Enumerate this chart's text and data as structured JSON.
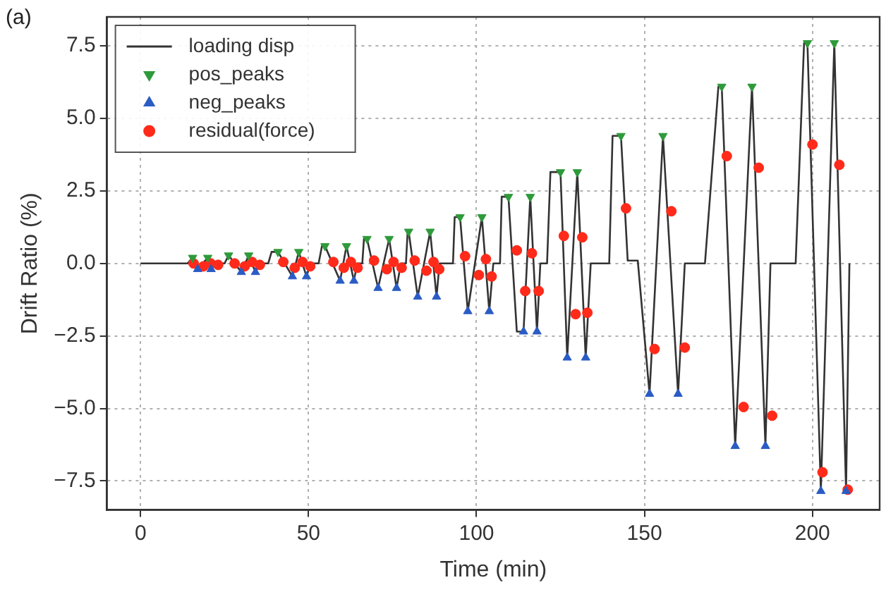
{
  "chart_data": {
    "type": "line",
    "xlabel": "Time (min)",
    "ylabel": "Drift Ratio (%)",
    "annotations": [
      "(a)"
    ],
    "xlim": [
      -10,
      220
    ],
    "xticks": [
      0,
      50,
      100,
      150,
      200
    ],
    "ylim": [
      -8.5,
      8.5
    ],
    "yticks": [
      {
        "value": -7.5,
        "label": "−7.5"
      },
      {
        "value": -5,
        "label": "−5.0"
      },
      {
        "value": -2.5,
        "label": "−2.5"
      },
      {
        "value": 0,
        "label": "0.0"
      },
      {
        "value": 2.5,
        "label": "2.5"
      },
      {
        "value": 5,
        "label": "5.0"
      },
      {
        "value": 7.5,
        "label": "7.5"
      }
    ],
    "grid": true,
    "legend": "top left",
    "series": [
      {
        "name": "loading disp",
        "color": "#333333",
        "marker": "none",
        "line_style": "solid",
        "x": [
          0,
          14,
          15.5,
          17,
          20,
          21,
          22,
          25,
          26.2,
          30,
          32.2,
          34.2,
          35.5,
          38,
          39,
          40.9,
          45.2,
          47.1,
          49.4,
          50.5,
          53,
          54,
          54.9,
          59.4,
          61.3,
          63.5,
          64.5,
          66,
          66.5,
          67.4,
          70.7,
          74,
          76.2,
          77.5,
          79,
          79.5,
          79.8,
          82.5,
          86.2,
          88.1,
          89,
          93,
          93.5,
          95.1,
          97.4,
          101.6,
          103.8,
          105,
          107,
          107.5,
          109.5,
          112,
          114,
          116,
          118,
          119,
          121,
          122,
          125,
          127,
          130,
          132.5,
          134,
          139.5,
          140.5,
          143,
          145,
          148,
          151.5,
          155.5,
          160,
          162,
          168,
          172,
          173,
          177,
          182,
          186,
          187.5,
          195,
          197.5,
          198.5,
          202.5,
          206.5,
          210,
          211
        ],
        "values": [
          0,
          0,
          0.2,
          -0.2,
          0.2,
          -0.2,
          0,
          0,
          0.28,
          -0.3,
          0.28,
          -0.3,
          0,
          0,
          0.4,
          0.4,
          -0.45,
          0.4,
          -0.45,
          0,
          0,
          0.6,
          0.6,
          -0.6,
          0.6,
          -0.6,
          0,
          0,
          0.85,
          0.85,
          -0.85,
          0.85,
          -0.85,
          0,
          0,
          1.1,
          1.1,
          -1.15,
          1.1,
          -1.15,
          0,
          0,
          1.6,
          1.6,
          -1.65,
          1.6,
          -1.65,
          0,
          0,
          2.3,
          2.3,
          -2.35,
          -2.35,
          2.3,
          -2.35,
          0,
          0,
          3.15,
          3.15,
          -3.25,
          3.15,
          -3.25,
          0,
          0,
          4.4,
          4.4,
          0.1,
          0.1,
          -4.5,
          4.4,
          -4.5,
          0,
          0,
          6.1,
          6.1,
          -6.3,
          6.1,
          -6.3,
          0,
          0,
          7.6,
          7.6,
          -7.85,
          7.6,
          -7.85,
          0
        ]
      },
      {
        "name": "pos_peaks",
        "type": "scatter",
        "color": "#2e9a3a",
        "marker": "triangle_down",
        "x": [
          15.5,
          20,
          26.2,
          32.2,
          40.9,
          47.1,
          54.9,
          61.3,
          67.4,
          74,
          79.8,
          86.2,
          95.1,
          101.6,
          109.5,
          116,
          125,
          130,
          143,
          155.5,
          173,
          182,
          198.5,
          206.5
        ],
        "values": [
          0.2,
          0.2,
          0.28,
          0.28,
          0.4,
          0.4,
          0.6,
          0.6,
          0.85,
          0.85,
          1.1,
          1.1,
          1.6,
          1.6,
          2.3,
          2.3,
          3.15,
          3.15,
          4.4,
          4.4,
          6.1,
          6.1,
          7.6,
          7.6
        ]
      },
      {
        "name": "neg_peaks",
        "type": "scatter",
        "color": "#2a5cc4",
        "marker": "triangle",
        "x": [
          17,
          21,
          30,
          34.2,
          45.2,
          49.4,
          59.4,
          63.5,
          70.7,
          76.2,
          82.5,
          88.1,
          97.4,
          103.8,
          114,
          118,
          127,
          132.5,
          151.5,
          160,
          177,
          186,
          202.5,
          210
        ],
        "values": [
          -0.2,
          -0.2,
          -0.3,
          -0.3,
          -0.45,
          -0.45,
          -0.6,
          -0.6,
          -0.85,
          -0.85,
          -1.15,
          -1.15,
          -1.65,
          -1.65,
          -2.35,
          -2.35,
          -3.25,
          -3.25,
          -4.5,
          -4.5,
          -6.3,
          -6.3,
          -7.85,
          -7.85
        ]
      },
      {
        "name": "residual(force)",
        "type": "scatter",
        "color": "#ff2a1a",
        "marker": "circle",
        "x": [
          15.8,
          18.7,
          20.9,
          23.1,
          28,
          31,
          33.2,
          35.5,
          42.5,
          45.9,
          48.2,
          50.5,
          57.4,
          60.5,
          62.6,
          64.6,
          69.5,
          73.3,
          75.3,
          77.7,
          81.6,
          85.1,
          87.2,
          88.9,
          96.6,
          100.7,
          102.8,
          104.5,
          112,
          114.5,
          116.5,
          118.5,
          126,
          129.5,
          131.5,
          133,
          144.5,
          153,
          158,
          162,
          174.5,
          179.5,
          184,
          188,
          200,
          203,
          208,
          210.5
        ],
        "values": [
          0,
          -0.1,
          0,
          -0.05,
          0,
          -0.1,
          0.05,
          -0.05,
          0.05,
          -0.15,
          0.05,
          -0.1,
          0.05,
          -0.15,
          0.05,
          -0.15,
          0.1,
          -0.2,
          0.05,
          -0.15,
          0.1,
          -0.25,
          0.05,
          -0.2,
          0.25,
          -0.4,
          0.15,
          -0.45,
          0.45,
          -0.95,
          0.35,
          -0.95,
          0.95,
          -1.75,
          0.9,
          -1.7,
          1.9,
          -2.95,
          1.8,
          -2.9,
          3.7,
          -4.95,
          3.3,
          -5.25,
          4.1,
          -7.2,
          3.4,
          -7.8
        ]
      }
    ]
  }
}
